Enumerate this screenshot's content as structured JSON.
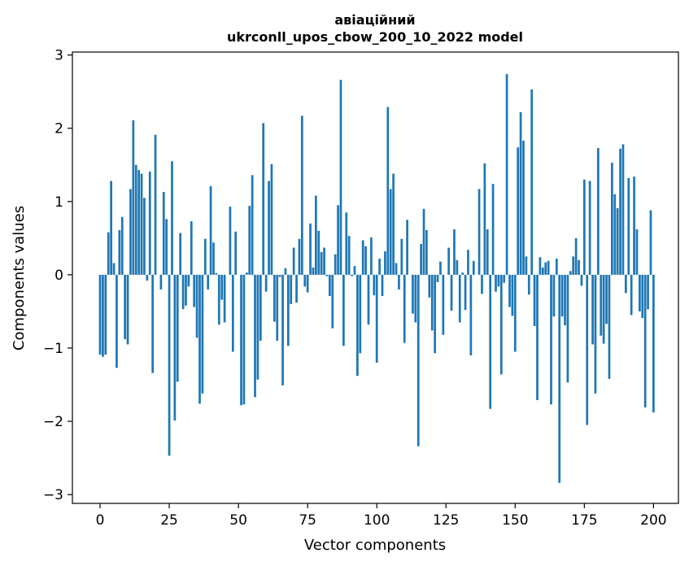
{
  "chart_data": {
    "type": "bar",
    "title_line1": "авіаційний",
    "title_line2": "ukrconll_upos_cbow_200_10_2022 model",
    "xlabel": "Vector components",
    "ylabel": "Components values",
    "xlim": [
      -10,
      209
    ],
    "ylim": [
      -3.12,
      3.04
    ],
    "xticks": [
      0,
      25,
      50,
      75,
      100,
      125,
      150,
      175,
      200
    ],
    "xtick_labels": [
      "0",
      "25",
      "50",
      "75",
      "100",
      "125",
      "150",
      "175",
      "200"
    ],
    "yticks": [
      -3,
      -2,
      -1,
      0,
      1,
      2,
      3
    ],
    "ytick_labels": [
      "−3",
      "−2",
      "−1",
      "0",
      "1",
      "2",
      "3"
    ],
    "bar_color": "#1f77b4",
    "grid": false,
    "values": [
      -1.09,
      -1.12,
      -1.09,
      0.58,
      1.28,
      0.16,
      -1.27,
      0.61,
      0.79,
      -0.88,
      -0.95,
      1.17,
      2.11,
      1.5,
      1.43,
      1.38,
      1.05,
      -0.08,
      1.41,
      -1.34,
      1.91,
      0.0,
      -0.2,
      1.13,
      0.76,
      -2.47,
      1.55,
      -1.99,
      -1.46,
      0.57,
      -0.47,
      -0.42,
      -0.16,
      0.73,
      -0.44,
      -0.86,
      -1.76,
      -1.62,
      0.49,
      -0.2,
      1.21,
      0.44,
      0.02,
      -0.68,
      -0.34,
      -0.65,
      0.0,
      0.93,
      -1.05,
      0.59,
      0.0,
      -1.78,
      -1.77,
      0.03,
      0.94,
      1.36,
      -1.67,
      -1.43,
      -0.9,
      2.07,
      -0.23,
      1.28,
      1.51,
      -0.64,
      -0.9,
      -0.03,
      -1.51,
      0.09,
      -0.97,
      -0.4,
      0.37,
      -0.38,
      0.49,
      2.17,
      -0.16,
      -0.24,
      0.7,
      0.1,
      1.08,
      0.6,
      0.31,
      0.37,
      -0.02,
      -0.29,
      -0.73,
      0.28,
      0.95,
      2.66,
      -0.97,
      0.85,
      0.53,
      -0.02,
      0.12,
      -1.38,
      -1.07,
      0.47,
      0.39,
      -0.68,
      0.51,
      -0.28,
      -1.2,
      0.22,
      -0.29,
      0.32,
      2.29,
      1.17,
      1.38,
      0.16,
      -0.2,
      0.49,
      -0.93,
      0.75,
      0.0,
      -0.53,
      -0.65,
      -2.34,
      0.42,
      0.9,
      0.61,
      -0.31,
      -0.76,
      -1.07,
      -0.1,
      0.18,
      -0.82,
      0.0,
      0.37,
      -0.49,
      0.62,
      0.2,
      -0.65,
      0.03,
      -0.48,
      0.34,
      -1.1,
      0.19,
      0.0,
      1.17,
      -0.26,
      1.52,
      0.62,
      -1.83,
      1.24,
      -0.23,
      -0.16,
      -1.36,
      -0.11,
      2.74,
      -0.44,
      -0.56,
      -1.05,
      1.74,
      2.22,
      1.83,
      0.25,
      -0.27,
      2.53,
      -0.7,
      -1.71,
      0.24,
      0.1,
      0.17,
      0.19,
      -1.77,
      -0.57,
      0.22,
      -2.84,
      -0.57,
      -0.69,
      -1.47,
      0.05,
      0.25,
      0.5,
      0.2,
      -0.15,
      1.3,
      -2.05,
      1.28,
      -0.95,
      -1.62,
      1.73,
      -0.83,
      -0.94,
      -0.67,
      -1.42,
      1.53,
      1.1,
      0.91,
      1.72,
      1.78,
      -0.25,
      1.32,
      -0.55,
      1.34,
      0.62,
      -0.5,
      -0.59,
      -1.81,
      -0.47,
      0.88,
      -1.88
    ]
  }
}
